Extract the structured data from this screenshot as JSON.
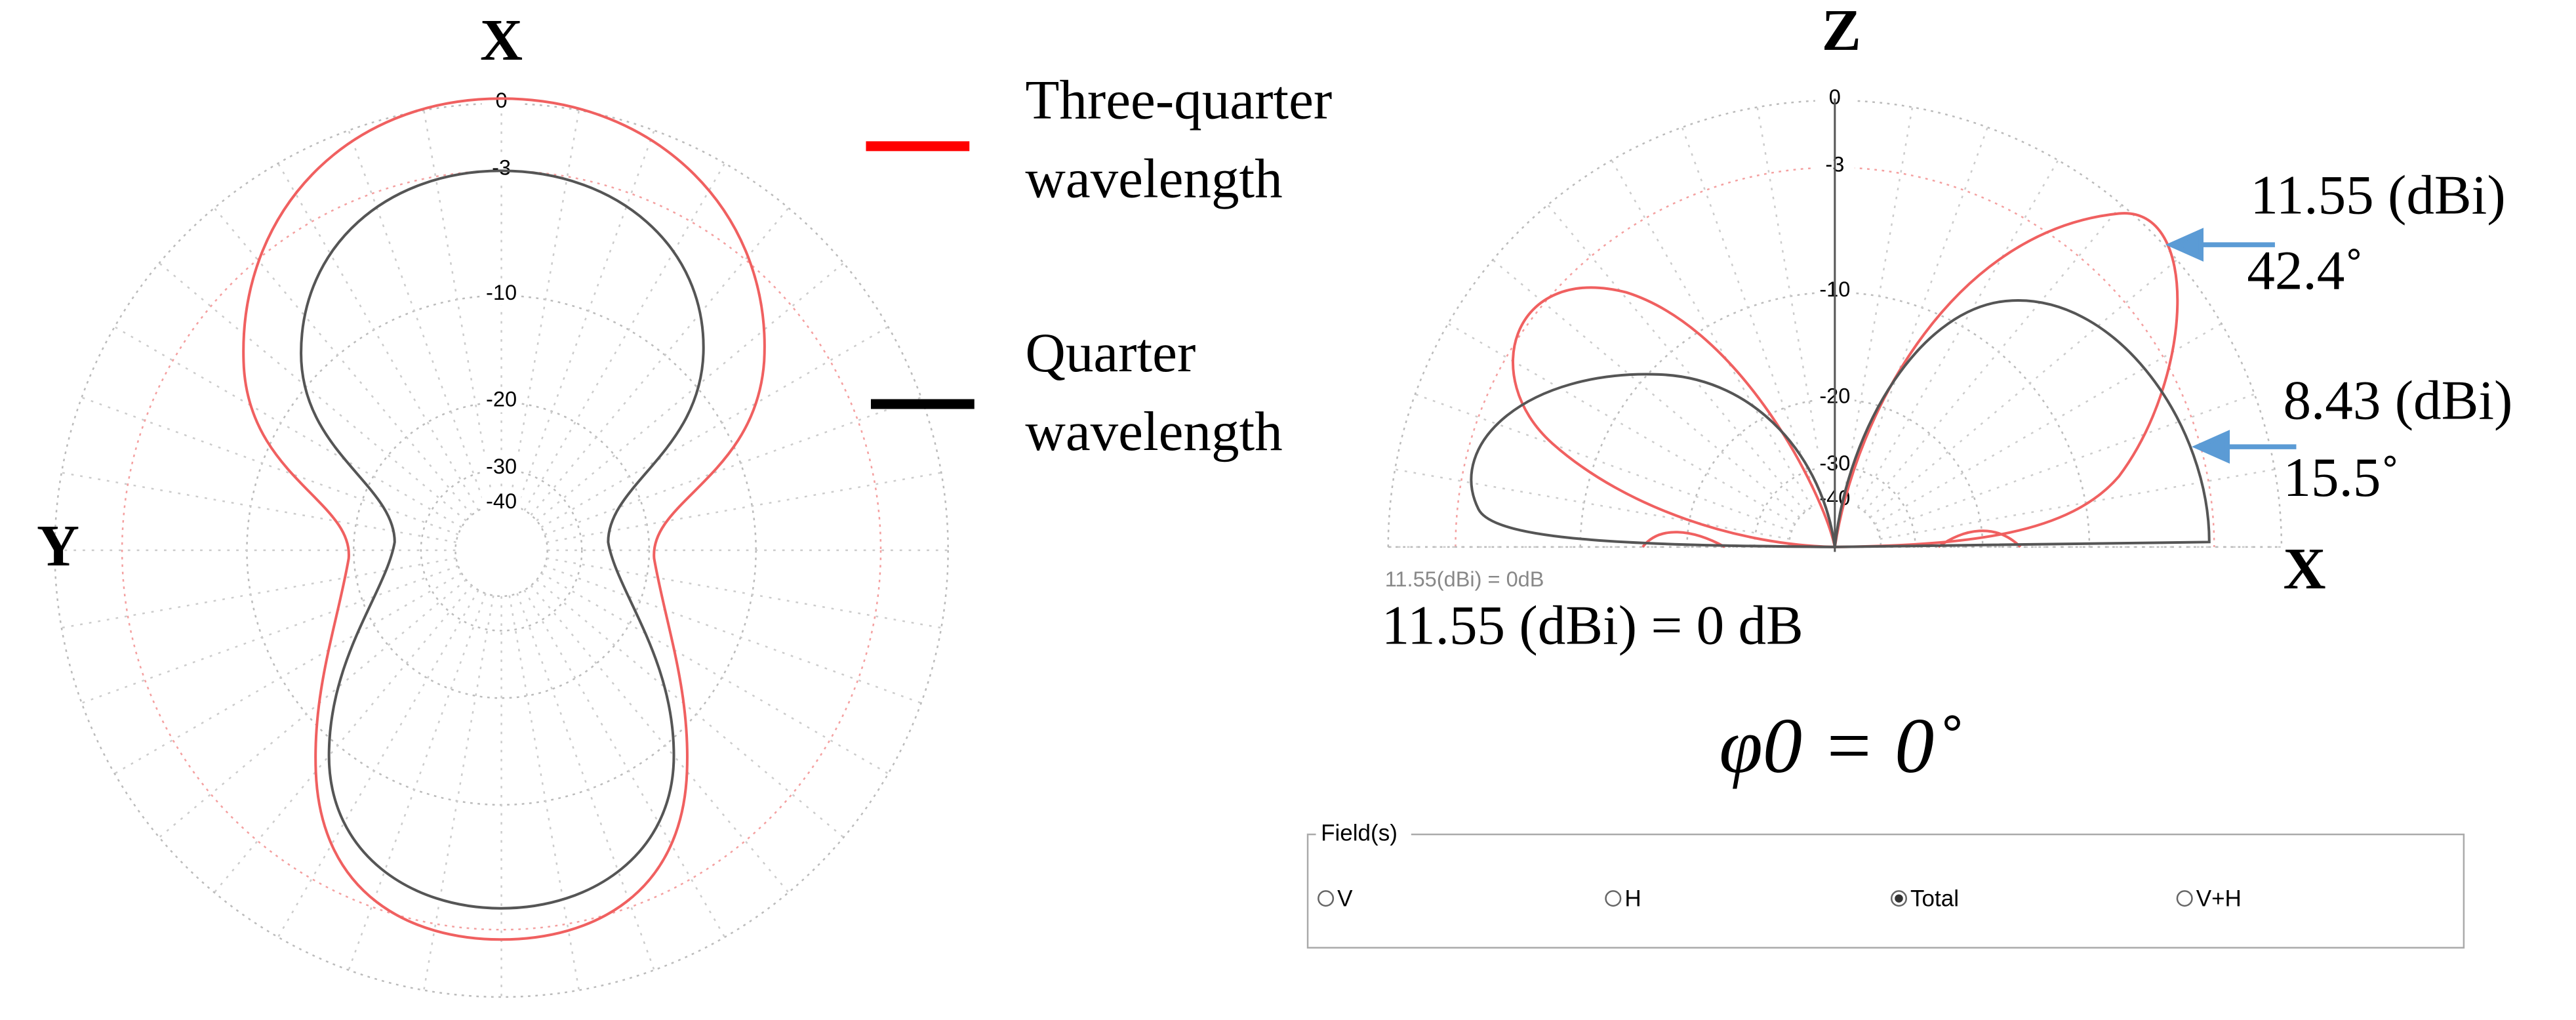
{
  "left_plot": {
    "axis_top": "X",
    "axis_left": "Y",
    "ring_labels": [
      "0",
      "-3",
      "-10",
      "-20",
      "-30",
      "-40"
    ]
  },
  "legend": {
    "items": [
      {
        "label_line1": "Three-quarter",
        "label_line2": "wavelength",
        "color": "#ff0000"
      },
      {
        "label_line1": "Quarter",
        "label_line2": "wavelength",
        "color": "#000000"
      }
    ]
  },
  "right_plot": {
    "axis_top": "Z",
    "axis_right": "X",
    "ring_labels": [
      "0",
      "-3",
      "-10",
      "-20",
      "-30",
      "-40"
    ],
    "annotations": [
      {
        "gain": "11.55 (dBi)",
        "angle": "42.4˚"
      },
      {
        "gain": "8.43 (dBi)",
        "angle": "15.5˚"
      }
    ],
    "small_reference": "11.55(dBi) = 0dB",
    "reference": "11.55 (dBi) = 0 dB",
    "phi": "φ0 = 0˚"
  },
  "fields_panel": {
    "title": "Field(s)",
    "options": [
      "V",
      "H",
      "Total",
      "V+H"
    ],
    "selected": "Total"
  }
}
